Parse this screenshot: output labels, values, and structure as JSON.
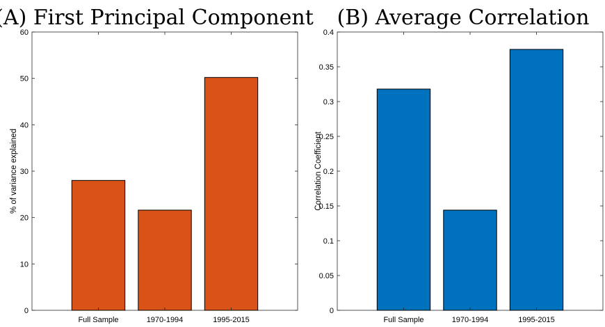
{
  "chart_data": [
    {
      "type": "bar",
      "title": "(A) First Principal Component",
      "xlabel": "",
      "ylabel": "% of variance explained",
      "categories": [
        "Full Sample",
        "1970-1994",
        "1995-2015"
      ],
      "values": [
        28.0,
        21.6,
        50.2
      ],
      "ylim": [
        0,
        60
      ],
      "yticks": [
        0,
        10,
        20,
        30,
        40,
        50,
        60
      ],
      "ytick_labels": [
        "0",
        "10",
        "20",
        "30",
        "40",
        "50",
        "60"
      ],
      "bar_color": "#D95319",
      "grid": false,
      "legend": "none"
    },
    {
      "type": "bar",
      "title": "(B) Average Correlation",
      "xlabel": "",
      "ylabel": "Correlation Coefficient",
      "categories": [
        "Full Sample",
        "1970-1994",
        "1995-2015"
      ],
      "values": [
        0.318,
        0.144,
        0.375
      ],
      "ylim": [
        0,
        0.4
      ],
      "yticks": [
        0,
        0.05,
        0.1,
        0.15,
        0.2,
        0.25,
        0.3,
        0.35,
        0.4
      ],
      "ytick_labels": [
        "0",
        "0.05",
        "0.1",
        "0.15",
        "0.2",
        "0.25",
        "0.3",
        "0.35",
        "0.4"
      ],
      "bar_color": "#0072BD",
      "grid": false,
      "legend": "none"
    }
  ]
}
